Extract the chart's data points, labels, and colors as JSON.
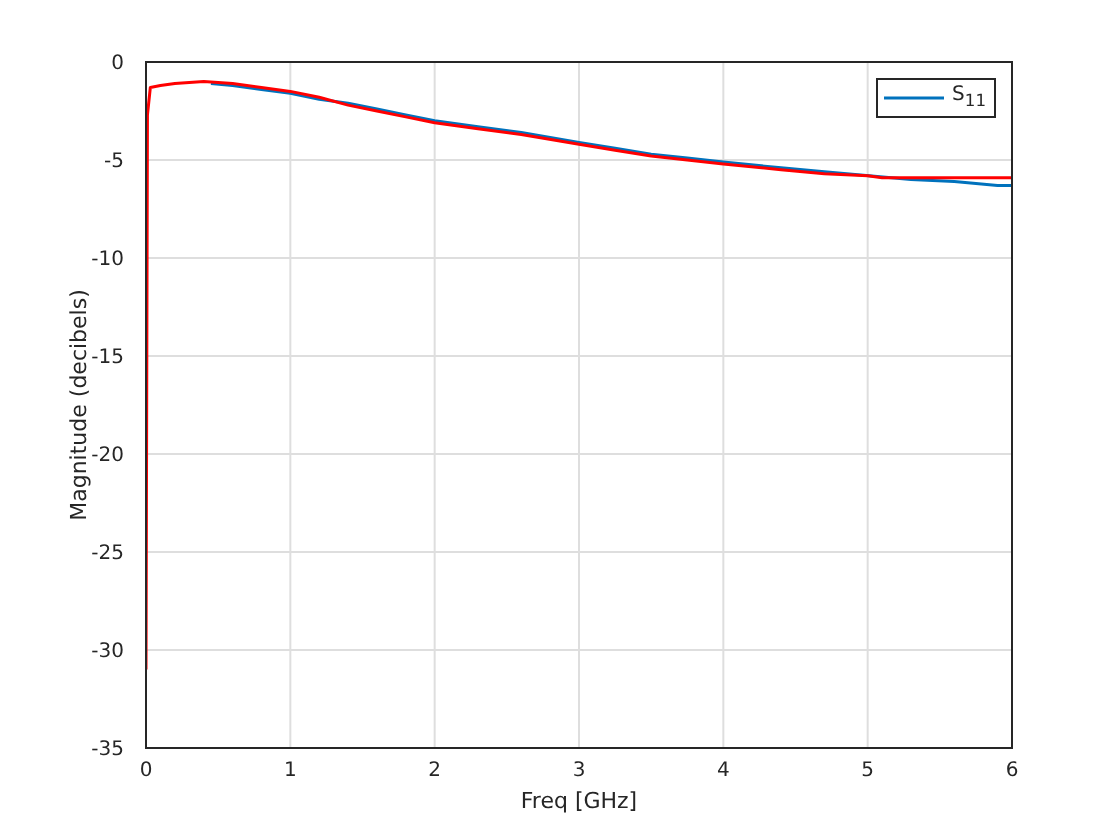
{
  "chart_data": {
    "type": "line",
    "xlabel": "Freq [GHz]",
    "ylabel": "Magnitude (decibels)",
    "xlim": [
      0,
      6
    ],
    "xticks": [
      0,
      1,
      2,
      3,
      4,
      5,
      6
    ],
    "ylim": [
      -35,
      0
    ],
    "yticks": [
      -35,
      -30,
      -25,
      -20,
      -15,
      -10,
      -5,
      0
    ],
    "grid": true,
    "legend": "top right",
    "line_style": "solid",
    "marker": "none",
    "series": [
      {
        "name": "S$_{11}$",
        "color": "#0072bd",
        "x": [
          0.45,
          0.6,
          0.8,
          1.0,
          1.2,
          1.4,
          1.6,
          1.8,
          2.0,
          2.3,
          2.6,
          3.0,
          3.25,
          3.5,
          3.75,
          4.0,
          4.4,
          4.7,
          5.3,
          5.6,
          5.9,
          6.0
        ],
        "values": [
          -1.1,
          -1.2,
          -1.4,
          -1.6,
          -1.9,
          -2.1,
          -2.4,
          -2.7,
          -3.0,
          -3.3,
          -3.6,
          -4.1,
          -4.4,
          -4.7,
          -4.9,
          -5.1,
          -5.4,
          -5.6,
          -6.0,
          -6.1,
          -6.3,
          -6.3
        ]
      },
      {
        "color": "#ff0000",
        "x": [
          0,
          0.01,
          0.03,
          0.1,
          0.2,
          0.4,
          0.6,
          0.8,
          1.0,
          1.2,
          1.4,
          1.6,
          1.8,
          2.0,
          2.3,
          2.6,
          3.0,
          3.25,
          3.5,
          3.75,
          4.0,
          4.4,
          4.7,
          5.0,
          5.1,
          6.0
        ],
        "values": [
          -31,
          -2.7,
          -1.3,
          -1.2,
          -1.1,
          -1.0,
          -1.1,
          -1.3,
          -1.5,
          -1.8,
          -2.2,
          -2.5,
          -2.8,
          -3.1,
          -3.4,
          -3.7,
          -4.2,
          -4.5,
          -4.8,
          -5.0,
          -5.2,
          -5.5,
          -5.7,
          -5.8,
          -5.9,
          -5.9
        ]
      }
    ]
  }
}
